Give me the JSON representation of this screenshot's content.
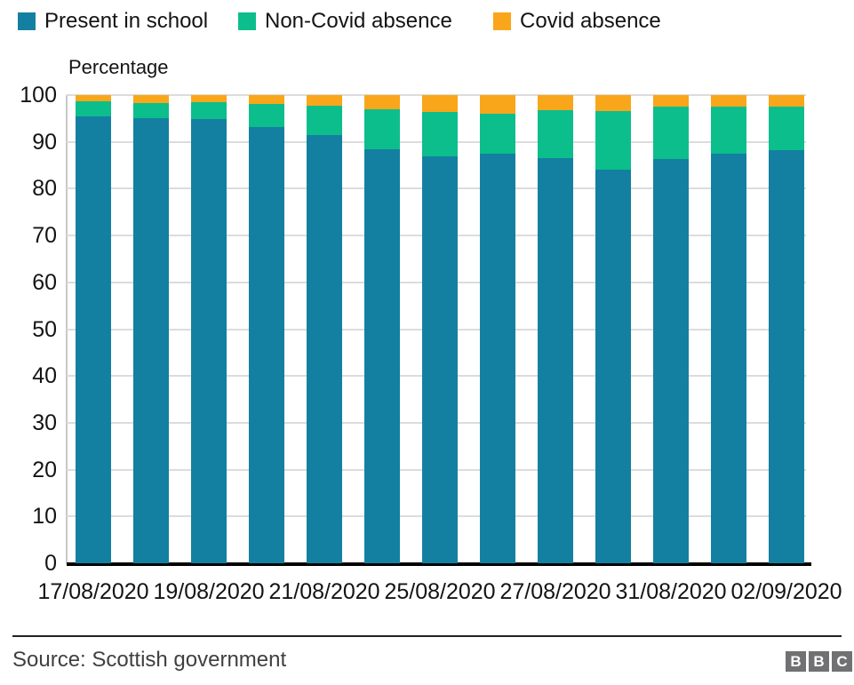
{
  "legend": {
    "items": [
      {
        "label": "Present in school",
        "color": "#1380A1"
      },
      {
        "label": "Non-Covid absence",
        "color": "#0CBE8C"
      },
      {
        "label": "Covid absence",
        "color": "#FAA61A"
      }
    ]
  },
  "y_axis_title": "Percentage",
  "footer": {
    "source": "Source: Scottish government",
    "logo_letters": [
      "B",
      "B",
      "C"
    ]
  },
  "colors": {
    "present": "#1380A1",
    "non_covid": "#0CBE8C",
    "covid": "#FAA61A",
    "gridline": "#DCDCDC",
    "axis_line": "#000000",
    "text": "#141414",
    "source_text": "#404040",
    "logo_gray": "#717173"
  },
  "chart_data": {
    "type": "bar",
    "stacked": true,
    "title": "",
    "xlabel": "",
    "ylabel": "Percentage",
    "ylim": [
      0,
      100
    ],
    "y_ticks": [
      0,
      10,
      20,
      30,
      40,
      50,
      60,
      70,
      80,
      90,
      100
    ],
    "grid": true,
    "legend_position": "top",
    "n_bars": 13,
    "categories": [
      "17/08/2020",
      "",
      "19/08/2020",
      "",
      "21/08/2020",
      "",
      "25/08/2020",
      "",
      "27/08/2020",
      "",
      "31/08/2020",
      "",
      "02/09/2020"
    ],
    "series": [
      {
        "name": "Present in school",
        "color": "#1380A1",
        "values": [
          95.5,
          95.1,
          94.8,
          93.2,
          91.5,
          88.5,
          86.9,
          87.4,
          86.5,
          84.0,
          86.3,
          87.4,
          88.3
        ]
      },
      {
        "name": "Non-Covid absence",
        "color": "#0CBE8C",
        "values": [
          3.2,
          3.2,
          3.6,
          5.0,
          6.3,
          8.5,
          9.5,
          8.6,
          10.2,
          12.6,
          11.2,
          10.1,
          9.2
        ]
      },
      {
        "name": "Covid absence",
        "color": "#FAA61A",
        "values": [
          1.3,
          1.7,
          1.6,
          1.8,
          2.2,
          3.0,
          3.6,
          4.0,
          3.3,
          3.4,
          2.5,
          2.5,
          2.5
        ]
      }
    ]
  }
}
